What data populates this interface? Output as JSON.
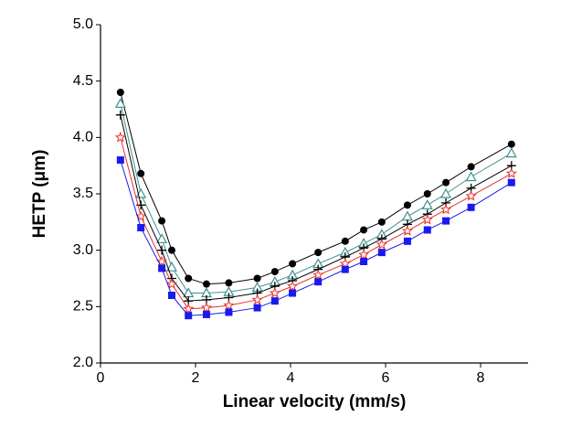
{
  "chart_data": {
    "type": "line",
    "x_label": "Linear velocity (mm/s)",
    "y_label": "HETP (μm)",
    "x": [
      0.42,
      0.85,
      1.29,
      1.5,
      1.85,
      2.23,
      2.7,
      3.3,
      3.67,
      4.04,
      4.58,
      5.15,
      5.54,
      5.92,
      6.46,
      6.88,
      7.27,
      7.8,
      8.65
    ],
    "series": [
      {
        "color": "#000000",
        "marker": "circle",
        "values": [
          4.4,
          3.68,
          3.26,
          3.0,
          2.75,
          2.7,
          2.71,
          2.75,
          2.81,
          2.88,
          2.98,
          3.08,
          3.18,
          3.25,
          3.4,
          3.5,
          3.6,
          3.74,
          3.94
        ]
      },
      {
        "color": "#3f8f8f",
        "marker": "triangle",
        "values": [
          4.3,
          3.5,
          3.1,
          2.85,
          2.62,
          2.62,
          2.63,
          2.67,
          2.72,
          2.78,
          2.88,
          2.98,
          3.06,
          3.14,
          3.3,
          3.4,
          3.5,
          3.65,
          3.86
        ]
      },
      {
        "color": "#000000",
        "marker": "plus",
        "values": [
          4.2,
          3.4,
          3.0,
          2.75,
          2.55,
          2.56,
          2.58,
          2.62,
          2.68,
          2.73,
          2.83,
          2.94,
          3.02,
          3.1,
          3.23,
          3.32,
          3.42,
          3.55,
          3.75
        ]
      },
      {
        "color": "#e8302a",
        "marker": "star",
        "values": [
          4.0,
          3.3,
          2.9,
          2.7,
          2.48,
          2.49,
          2.51,
          2.56,
          2.62,
          2.68,
          2.78,
          2.88,
          2.96,
          3.05,
          3.17,
          3.27,
          3.36,
          3.48,
          3.68
        ]
      },
      {
        "color": "#1a1aee",
        "marker": "square",
        "values": [
          3.8,
          3.2,
          2.84,
          2.6,
          2.42,
          2.43,
          2.45,
          2.49,
          2.55,
          2.62,
          2.72,
          2.83,
          2.9,
          2.98,
          3.08,
          3.18,
          3.26,
          3.38,
          3.6
        ]
      }
    ],
    "xlim": [
      0,
      9
    ],
    "ylim": [
      2,
      5
    ],
    "xticks": [
      0,
      2,
      4,
      6,
      8
    ],
    "yticks": [
      {
        "value": 2,
        "label": "2.0"
      },
      2.5,
      {
        "value": 3,
        "label": "3.0"
      },
      3.5,
      {
        "value": 4,
        "label": "4.0"
      },
      4.5,
      {
        "value": 5,
        "label": "5.0"
      }
    ]
  }
}
